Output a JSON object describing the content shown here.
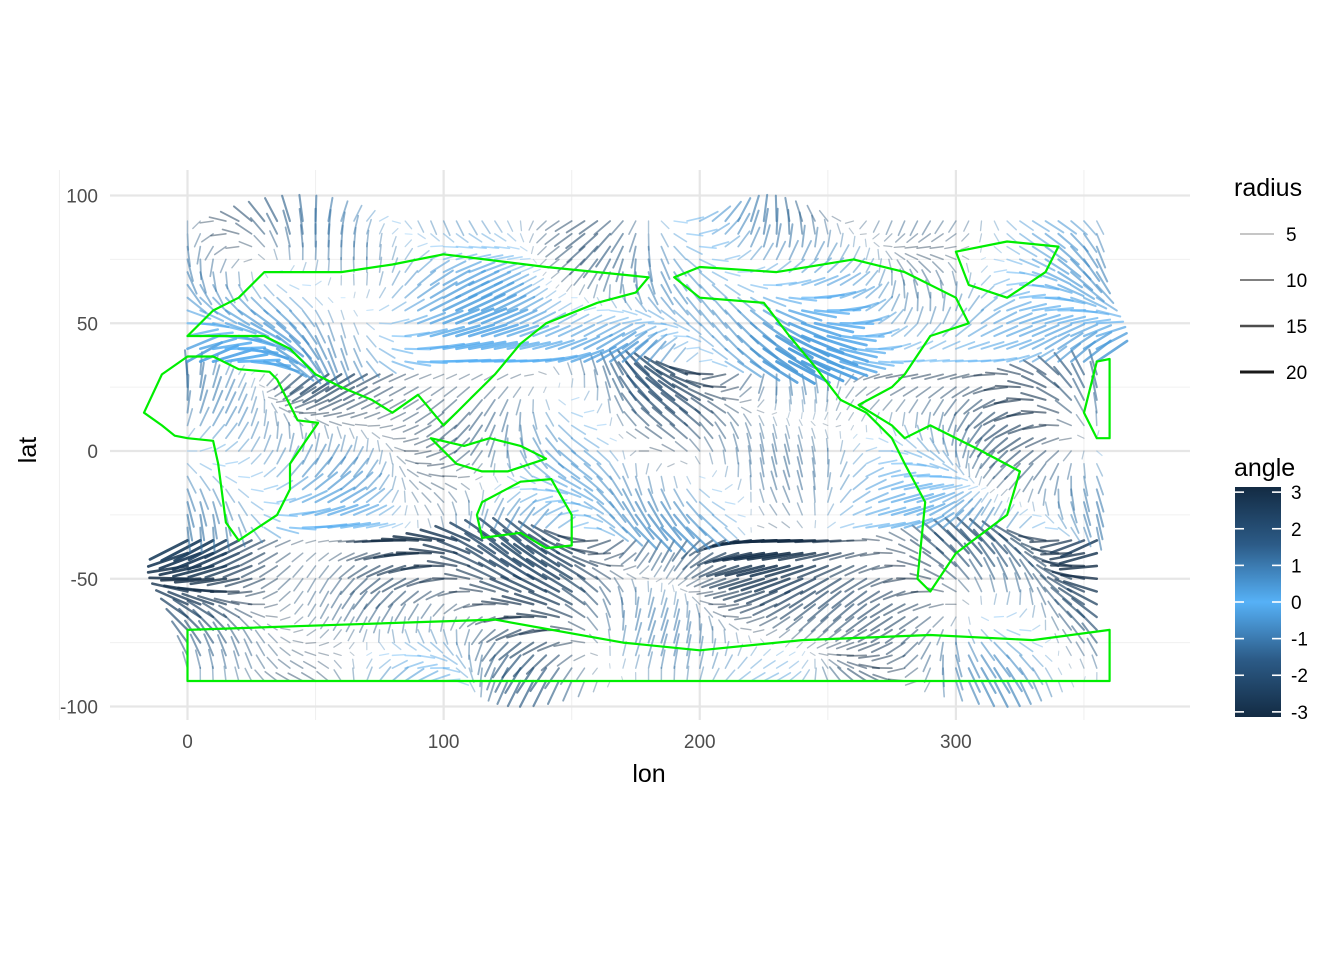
{
  "chart_data": {
    "type": "vector-field",
    "xlabel": "lon",
    "ylabel": "lat",
    "xlim": [
      -30,
      390
    ],
    "ylim": [
      -105,
      105
    ],
    "x_ticks": [
      0,
      100,
      200,
      300
    ],
    "x_tick_labels": [
      "0",
      "100",
      "200",
      "300"
    ],
    "y_ticks": [
      100,
      50,
      0,
      -50,
      -100
    ],
    "y_tick_labels": [
      "100",
      "50",
      "0",
      "-50",
      "-100"
    ],
    "grid": true,
    "field": {
      "lon_range": [
        0,
        357.5
      ],
      "lat_range": [
        -90,
        90
      ],
      "lon_step": 5,
      "lat_step": 5,
      "radius_range": [
        0,
        20
      ],
      "angle_range": [
        -3.14,
        3.14
      ]
    },
    "overlay": {
      "name": "coastlines",
      "color": "#00ee00"
    },
    "legend_radius": {
      "title": "radius",
      "entries": [
        {
          "label": "5",
          "value": 5
        },
        {
          "label": "10",
          "value": 10
        },
        {
          "label": "15",
          "value": 15
        },
        {
          "label": "20",
          "value": 20
        }
      ]
    },
    "legend_angle": {
      "title": "angle",
      "ticks": [
        3,
        2,
        1,
        0,
        -1,
        -2,
        -3
      ],
      "tick_labels": [
        "3",
        "2",
        "1",
        "0",
        "-1",
        "-2",
        "-3"
      ],
      "range": [
        -3.14,
        3.14
      ],
      "colors": {
        "low": "#132b43",
        "mid": "#56b1f7",
        "high": "#132b43"
      }
    },
    "legend_placement": "right"
  }
}
